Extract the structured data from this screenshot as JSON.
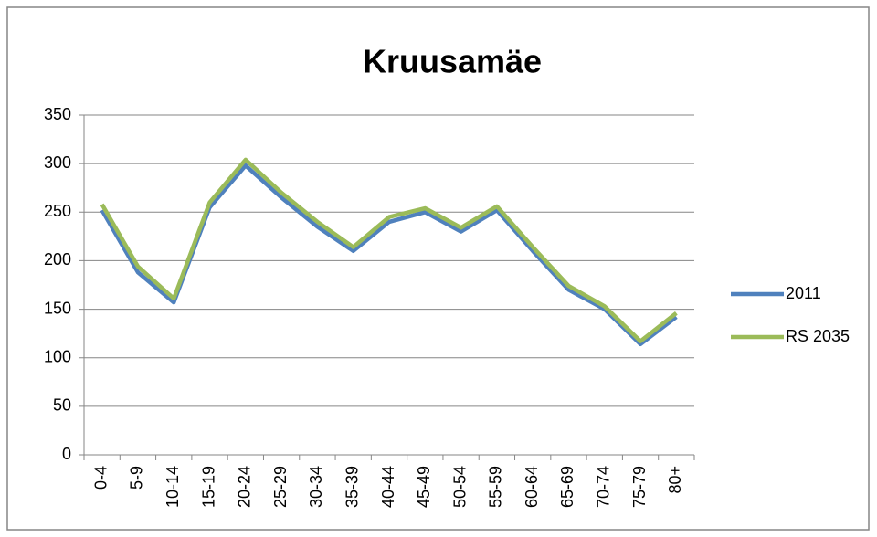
{
  "chart_data": {
    "type": "line",
    "title": "Kruusamäe",
    "categories": [
      "0-4",
      "5-9",
      "10-14",
      "15-19",
      "20-24",
      "25-29",
      "30-34",
      "35-39",
      "40-44",
      "45-49",
      "50-54",
      "55-59",
      "60-64",
      "65-69",
      "70-74",
      "75-79",
      "80+"
    ],
    "series": [
      {
        "name": "2011",
        "color": "#4f81bd",
        "values": [
          252,
          188,
          157,
          255,
          298,
          265,
          235,
          210,
          240,
          250,
          230,
          252,
          210,
          170,
          150,
          114,
          142
        ]
      },
      {
        "name": "RS 2035",
        "color": "#9bbb59",
        "values": [
          258,
          194,
          161,
          260,
          304,
          270,
          240,
          214,
          245,
          254,
          234,
          256,
          214,
          174,
          153,
          117,
          146
        ]
      }
    ],
    "ylim": [
      0,
      350
    ],
    "yticks": [
      0,
      50,
      100,
      150,
      200,
      250,
      300,
      350
    ],
    "grid": true,
    "legend": "right"
  }
}
